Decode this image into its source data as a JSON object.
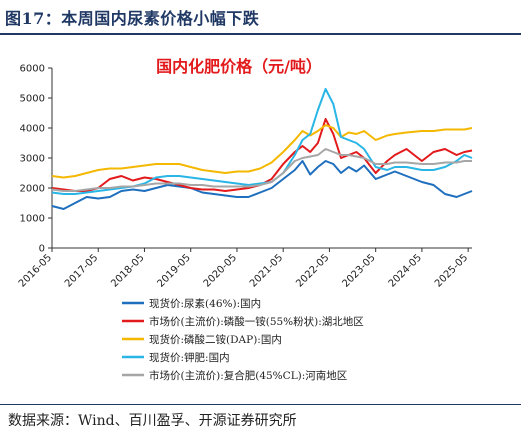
{
  "figure_title": "图17：本周国内尿素价格小幅下跌",
  "source": "数据来源：Wind、百川盈孚、开源证券研究所",
  "chart_data": {
    "type": "line",
    "title": "国内化肥价格（元/吨）",
    "xlabel": "",
    "ylabel": "",
    "ylim": [
      0,
      6000
    ],
    "yticks": [
      0,
      1000,
      2000,
      3000,
      4000,
      5000,
      6000
    ],
    "xlim": [
      "2016-05",
      "2025-06"
    ],
    "xticks": [
      "2016-05",
      "2017-05",
      "2018-05",
      "2019-05",
      "2020-05",
      "2021-05",
      "2022-05",
      "2023-05",
      "2024-05",
      "2025-05"
    ],
    "grid": false,
    "legend_position": "bottom",
    "series": [
      {
        "name": "现货价:尿素(46%):国内",
        "color": "#1f6fbf",
        "x": [
          "2016-05",
          "2016-08",
          "2016-11",
          "2017-02",
          "2017-05",
          "2017-08",
          "2017-11",
          "2018-02",
          "2018-05",
          "2018-08",
          "2018-11",
          "2019-02",
          "2019-05",
          "2019-08",
          "2019-11",
          "2020-02",
          "2020-05",
          "2020-08",
          "2020-11",
          "2021-02",
          "2021-05",
          "2021-08",
          "2021-10",
          "2021-12",
          "2022-02",
          "2022-04",
          "2022-06",
          "2022-08",
          "2022-10",
          "2022-12",
          "2023-02",
          "2023-05",
          "2023-08",
          "2023-10",
          "2024-01",
          "2024-05",
          "2024-08",
          "2024-11",
          "2025-02",
          "2025-04",
          "2025-06"
        ],
        "y": [
          1400,
          1300,
          1500,
          1700,
          1650,
          1700,
          1900,
          1950,
          1900,
          2000,
          2100,
          2050,
          2000,
          1850,
          1800,
          1750,
          1700,
          1700,
          1850,
          2000,
          2300,
          2600,
          2900,
          2450,
          2700,
          2900,
          2800,
          2500,
          2700,
          2550,
          2750,
          2300,
          2450,
          2550,
          2400,
          2200,
          2100,
          1800,
          1700,
          1800,
          1900
        ]
      },
      {
        "name": "市场价(主流价):磷酸一铵(55%粉状):湖北地区",
        "color": "#e31a1c",
        "x": [
          "2016-05",
          "2016-08",
          "2016-11",
          "2017-02",
          "2017-05",
          "2017-08",
          "2017-11",
          "2018-02",
          "2018-05",
          "2018-08",
          "2018-11",
          "2019-02",
          "2019-05",
          "2019-08",
          "2019-11",
          "2020-02",
          "2020-05",
          "2020-08",
          "2020-11",
          "2021-02",
          "2021-05",
          "2021-08",
          "2021-10",
          "2021-12",
          "2022-02",
          "2022-04",
          "2022-06",
          "2022-08",
          "2022-10",
          "2022-12",
          "2023-02",
          "2023-05",
          "2023-08",
          "2023-10",
          "2024-01",
          "2024-05",
          "2024-08",
          "2024-11",
          "2025-02",
          "2025-04",
          "2025-06"
        ],
        "y": [
          2000,
          1950,
          1900,
          1900,
          2000,
          2300,
          2400,
          2250,
          2350,
          2300,
          2200,
          2100,
          2000,
          1950,
          1950,
          1900,
          1950,
          2000,
          2100,
          2300,
          2800,
          3200,
          3400,
          3200,
          3500,
          4300,
          3800,
          3000,
          3100,
          3200,
          3000,
          2500,
          2900,
          3100,
          3300,
          2900,
          3200,
          3300,
          3100,
          3200,
          3250
        ]
      },
      {
        "name": "现货价:磷酸二铵(DAP):国内",
        "color": "#f5b800",
        "x": [
          "2016-05",
          "2016-08",
          "2016-11",
          "2017-02",
          "2017-05",
          "2017-08",
          "2017-11",
          "2018-02",
          "2018-05",
          "2018-08",
          "2018-11",
          "2019-02",
          "2019-05",
          "2019-08",
          "2019-11",
          "2020-02",
          "2020-05",
          "2020-08",
          "2020-11",
          "2021-02",
          "2021-05",
          "2021-08",
          "2021-10",
          "2021-12",
          "2022-02",
          "2022-04",
          "2022-06",
          "2022-08",
          "2022-10",
          "2022-12",
          "2023-02",
          "2023-05",
          "2023-08",
          "2023-10",
          "2024-01",
          "2024-05",
          "2024-08",
          "2024-11",
          "2025-02",
          "2025-04",
          "2025-06"
        ],
        "y": [
          2400,
          2350,
          2400,
          2500,
          2600,
          2650,
          2650,
          2700,
          2750,
          2800,
          2800,
          2800,
          2700,
          2600,
          2550,
          2500,
          2550,
          2550,
          2650,
          2850,
          3200,
          3600,
          3900,
          3750,
          3900,
          4100,
          4000,
          3700,
          3850,
          3800,
          3900,
          3600,
          3750,
          3800,
          3850,
          3900,
          3900,
          3950,
          3950,
          3950,
          4000
        ]
      },
      {
        "name": "现货价:钾肥:国内",
        "color": "#29b6e6",
        "x": [
          "2016-05",
          "2016-08",
          "2016-11",
          "2017-02",
          "2017-05",
          "2017-08",
          "2017-11",
          "2018-02",
          "2018-05",
          "2018-08",
          "2018-11",
          "2019-02",
          "2019-05",
          "2019-08",
          "2019-11",
          "2020-02",
          "2020-05",
          "2020-08",
          "2020-11",
          "2021-02",
          "2021-05",
          "2021-08",
          "2021-10",
          "2021-12",
          "2022-02",
          "2022-04",
          "2022-06",
          "2022-08",
          "2022-10",
          "2022-12",
          "2023-02",
          "2023-05",
          "2023-08",
          "2023-10",
          "2024-01",
          "2024-05",
          "2024-08",
          "2024-11",
          "2025-02",
          "2025-04",
          "2025-06"
        ],
        "y": [
          1850,
          1800,
          1800,
          1850,
          1900,
          1950,
          2000,
          2050,
          2150,
          2350,
          2400,
          2400,
          2350,
          2300,
          2250,
          2200,
          2150,
          2100,
          2150,
          2200,
          2500,
          3100,
          3600,
          3800,
          4600,
          5300,
          4800,
          3700,
          3600,
          3500,
          3300,
          2700,
          2600,
          2700,
          2700,
          2600,
          2600,
          2700,
          2900,
          3100,
          3000
        ]
      },
      {
        "name": "市场价(主流价):复合肥(45%CL):河南地区",
        "color": "#a6a6a6",
        "x": [
          "2016-05",
          "2016-08",
          "2016-11",
          "2017-02",
          "2017-05",
          "2017-08",
          "2017-11",
          "2018-02",
          "2018-05",
          "2018-08",
          "2018-11",
          "2019-02",
          "2019-05",
          "2019-08",
          "2019-11",
          "2020-02",
          "2020-05",
          "2020-08",
          "2020-11",
          "2021-02",
          "2021-05",
          "2021-08",
          "2021-10",
          "2021-12",
          "2022-02",
          "2022-04",
          "2022-06",
          "2022-08",
          "2022-10",
          "2022-12",
          "2023-02",
          "2023-05",
          "2023-08",
          "2023-10",
          "2024-01",
          "2024-05",
          "2024-08",
          "2024-11",
          "2025-02",
          "2025-04",
          "2025-06"
        ],
        "y": [
          1950,
          1900,
          1900,
          1950,
          2000,
          2000,
          2050,
          2050,
          2100,
          2150,
          2150,
          2150,
          2100,
          2100,
          2050,
          2050,
          2050,
          2050,
          2100,
          2200,
          2500,
          2900,
          3000,
          3050,
          3100,
          3300,
          3200,
          3100,
          3100,
          3050,
          3000,
          2800,
          2800,
          2850,
          2850,
          2800,
          2800,
          2850,
          2850,
          2900,
          2900
        ]
      }
    ]
  }
}
